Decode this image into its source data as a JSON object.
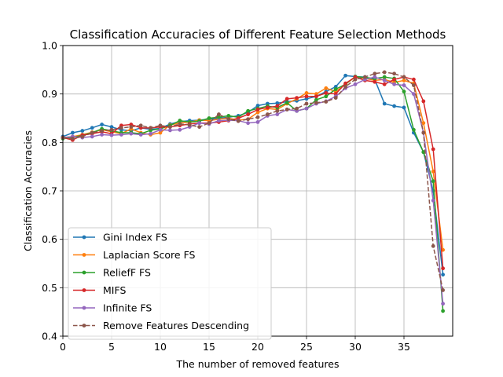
{
  "chart_data": {
    "type": "line",
    "title": "Classification Accuracies of Different Feature Selection Methods",
    "xlabel": "The number of removed features",
    "ylabel": "Classification Accuracies",
    "xlim": [
      0,
      40
    ],
    "ylim": [
      0.4,
      1.0
    ],
    "xticks": [
      0,
      5,
      10,
      15,
      20,
      25,
      30,
      35
    ],
    "yticks": [
      0.4,
      0.5,
      0.6,
      0.7,
      0.8,
      0.9,
      1.0
    ],
    "xtick_labels": [
      "0",
      "5",
      "10",
      "15",
      "20",
      "25",
      "30",
      "35"
    ],
    "ytick_labels": [
      "0.4",
      "0.5",
      "0.6",
      "0.7",
      "0.8",
      "0.9",
      "1.0"
    ],
    "grid": true,
    "legend_position": "lower-left",
    "x": [
      0,
      1,
      2,
      3,
      4,
      5,
      6,
      7,
      8,
      9,
      10,
      11,
      12,
      13,
      14,
      15,
      16,
      17,
      18,
      19,
      20,
      21,
      22,
      23,
      24,
      25,
      26,
      27,
      28,
      29,
      30,
      31,
      32,
      33,
      34,
      35,
      36,
      37,
      38,
      39
    ],
    "series": [
      {
        "name": "Gini Index FS",
        "color": "#1f77b4",
        "dash": "solid",
        "values": [
          0.812,
          0.82,
          0.824,
          0.83,
          0.837,
          0.832,
          0.826,
          0.824,
          0.83,
          0.827,
          0.829,
          0.838,
          0.843,
          0.845,
          0.846,
          0.848,
          0.85,
          0.852,
          0.855,
          0.862,
          0.876,
          0.88,
          0.881,
          0.884,
          0.886,
          0.89,
          0.895,
          0.905,
          0.915,
          0.938,
          0.936,
          0.935,
          0.93,
          0.88,
          0.875,
          0.872,
          0.82,
          0.78,
          0.7,
          0.527
        ]
      },
      {
        "name": "Laplacian Score FS",
        "color": "#ff7f0e",
        "dash": "solid",
        "values": [
          0.81,
          0.812,
          0.816,
          0.821,
          0.826,
          0.822,
          0.818,
          0.828,
          0.82,
          0.816,
          0.82,
          0.836,
          0.84,
          0.842,
          0.846,
          0.845,
          0.848,
          0.85,
          0.846,
          0.848,
          0.862,
          0.87,
          0.868,
          0.88,
          0.89,
          0.902,
          0.9,
          0.912,
          0.905,
          0.92,
          0.935,
          0.932,
          0.928,
          0.93,
          0.924,
          0.928,
          0.922,
          0.84,
          0.74,
          0.578
        ]
      },
      {
        "name": "ReliefF FS",
        "color": "#2ca02c",
        "dash": "solid",
        "values": [
          0.808,
          0.81,
          0.815,
          0.82,
          0.828,
          0.824,
          0.82,
          0.82,
          0.818,
          0.825,
          0.828,
          0.835,
          0.845,
          0.842,
          0.844,
          0.85,
          0.852,
          0.855,
          0.852,
          0.865,
          0.87,
          0.875,
          0.872,
          0.882,
          0.865,
          0.87,
          0.888,
          0.895,
          0.91,
          0.92,
          0.936,
          0.934,
          0.932,
          0.935,
          0.932,
          0.905,
          0.826,
          0.78,
          0.72,
          0.452
        ]
      },
      {
        "name": "MIFS",
        "color": "#d62728",
        "dash": "solid",
        "values": [
          0.81,
          0.805,
          0.815,
          0.818,
          0.822,
          0.818,
          0.835,
          0.837,
          0.83,
          0.83,
          0.832,
          0.832,
          0.835,
          0.838,
          0.84,
          0.84,
          0.842,
          0.845,
          0.85,
          0.858,
          0.868,
          0.872,
          0.875,
          0.89,
          0.892,
          0.895,
          0.895,
          0.902,
          0.9,
          0.922,
          0.935,
          0.928,
          0.925,
          0.92,
          0.93,
          0.935,
          0.93,
          0.885,
          0.786,
          0.54
        ]
      },
      {
        "name": "Infinite FS",
        "color": "#9467bd",
        "dash": "solid",
        "values": [
          0.81,
          0.812,
          0.81,
          0.812,
          0.816,
          0.815,
          0.816,
          0.818,
          0.816,
          0.818,
          0.826,
          0.825,
          0.826,
          0.832,
          0.84,
          0.838,
          0.845,
          0.846,
          0.845,
          0.84,
          0.842,
          0.855,
          0.858,
          0.868,
          0.865,
          0.87,
          0.88,
          0.885,
          0.895,
          0.912,
          0.92,
          0.93,
          0.935,
          0.928,
          0.92,
          0.918,
          0.9,
          0.82,
          0.68,
          0.467
        ]
      },
      {
        "name": "Remove Features Descending",
        "color": "#8c564b",
        "dash": "dashed",
        "values": [
          0.81,
          0.808,
          0.812,
          0.82,
          0.824,
          0.826,
          0.83,
          0.832,
          0.835,
          0.83,
          0.835,
          0.832,
          0.838,
          0.836,
          0.832,
          0.84,
          0.858,
          0.848,
          0.844,
          0.848,
          0.852,
          0.858,
          0.865,
          0.868,
          0.87,
          0.88,
          0.882,
          0.884,
          0.892,
          0.915,
          0.93,
          0.935,
          0.942,
          0.945,
          0.942,
          0.935,
          0.918,
          0.82,
          0.586,
          0.495
        ]
      }
    ]
  }
}
